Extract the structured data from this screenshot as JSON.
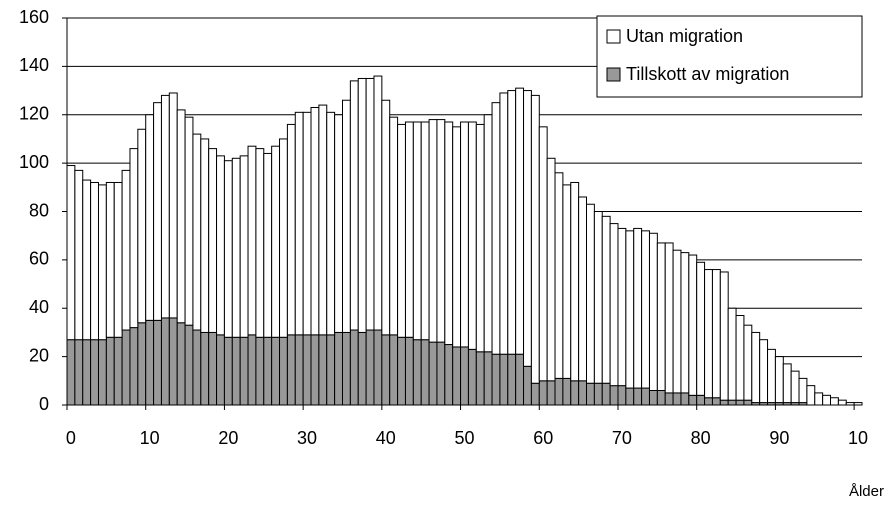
{
  "chart_data": {
    "type": "stacked_bar",
    "x_label": "Ålder",
    "categories": [
      "0",
      null,
      null,
      null,
      null,
      null,
      null,
      null,
      null,
      null,
      "10",
      null,
      null,
      null,
      null,
      null,
      null,
      null,
      null,
      null,
      "20",
      null,
      null,
      null,
      null,
      null,
      null,
      null,
      null,
      null,
      "30",
      null,
      null,
      null,
      null,
      null,
      null,
      null,
      null,
      null,
      "40",
      null,
      null,
      null,
      null,
      null,
      null,
      null,
      null,
      null,
      "50",
      null,
      null,
      null,
      null,
      null,
      null,
      null,
      null,
      null,
      "60",
      null,
      null,
      null,
      null,
      null,
      null,
      null,
      null,
      null,
      "70",
      null,
      null,
      null,
      null,
      null,
      null,
      null,
      null,
      null,
      "80",
      null,
      null,
      null,
      null,
      null,
      null,
      null,
      null,
      null,
      "90",
      null,
      null,
      null,
      null,
      null,
      null,
      null,
      null,
      null,
      "10"
    ],
    "series": [
      {
        "name": "Tillskott av migration",
        "color": "#999999",
        "values": [
          27,
          27,
          27,
          27,
          27,
          28,
          28,
          31,
          32,
          34,
          35,
          35,
          36,
          36,
          34,
          33,
          31,
          30,
          30,
          29,
          28,
          28,
          28,
          29,
          28,
          28,
          28,
          28,
          29,
          29,
          29,
          29,
          29,
          29,
          30,
          30,
          31,
          30,
          31,
          31,
          29,
          29,
          28,
          28,
          27,
          27,
          26,
          26,
          25,
          24,
          24,
          23,
          22,
          22,
          21,
          21,
          21,
          21,
          16,
          9,
          10,
          10,
          11,
          11,
          10,
          10,
          9,
          9,
          9,
          8,
          8,
          7,
          7,
          7,
          6,
          6,
          5,
          5,
          5,
          4,
          4,
          3,
          3,
          2,
          2,
          2,
          2,
          1,
          1,
          1,
          1,
          1,
          1,
          1,
          0,
          0,
          0,
          0,
          0,
          0,
          0
        ]
      },
      {
        "name": "Utan migration",
        "color": "#ffffff",
        "values": [
          72,
          70,
          66,
          65,
          64,
          64,
          64,
          66,
          74,
          80,
          85,
          90,
          92,
          93,
          88,
          86,
          81,
          80,
          76,
          74,
          73,
          74,
          75,
          78,
          78,
          76,
          79,
          82,
          87,
          92,
          92,
          94,
          95,
          92,
          90,
          96,
          103,
          105,
          104,
          105,
          97,
          90,
          88,
          89,
          90,
          90,
          92,
          92,
          92,
          91,
          93,
          94,
          94,
          98,
          104,
          108,
          109,
          110,
          114,
          119,
          105,
          92,
          85,
          80,
          82,
          76,
          74,
          71,
          69,
          67,
          65,
          65,
          66,
          65,
          65,
          61,
          62,
          59,
          58,
          58,
          55,
          53,
          53,
          53,
          38,
          35,
          31,
          29,
          26,
          22,
          19,
          16,
          13,
          10,
          8,
          5,
          4,
          3,
          2,
          1,
          1
        ]
      }
    ],
    "ylim": [
      0,
      160
    ],
    "yticks": [
      0,
      20,
      40,
      60,
      80,
      100,
      120,
      140,
      160
    ],
    "grid": true,
    "legend": "top-right"
  }
}
